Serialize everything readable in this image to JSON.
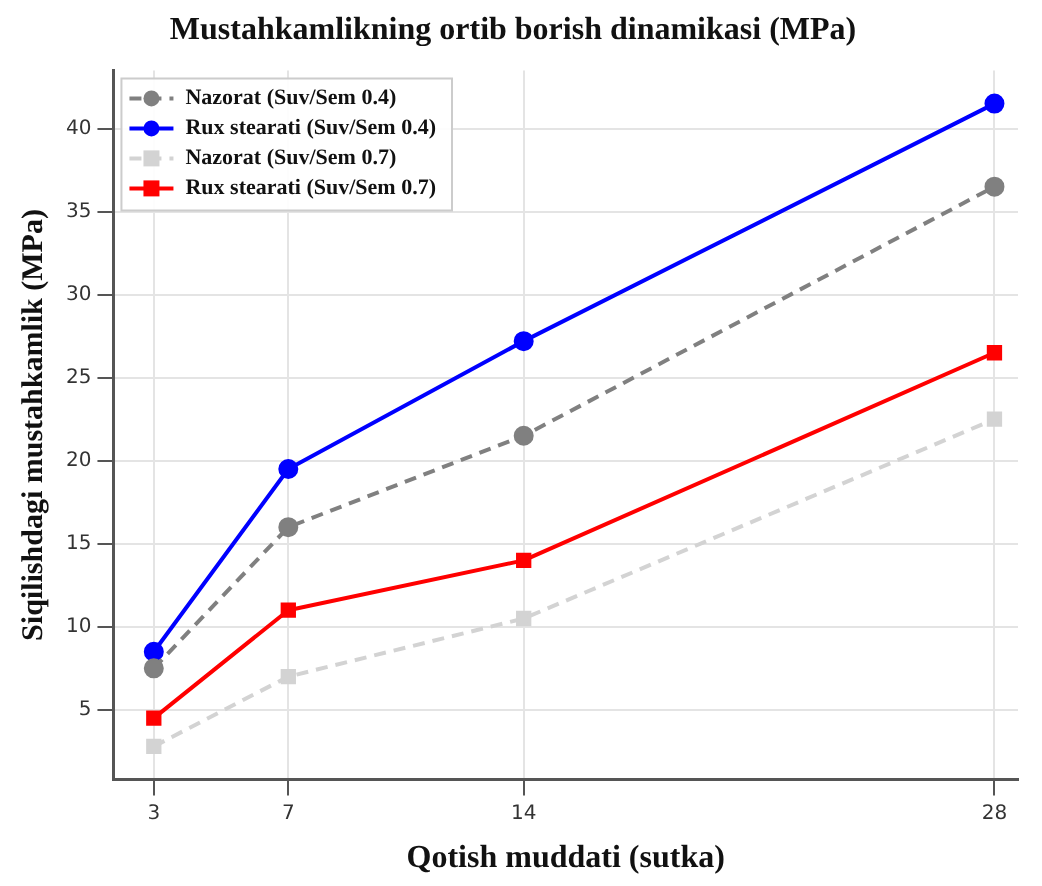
{
  "chart_data": {
    "type": "line",
    "title": "Mustahkamlikning ortib borish dinamikasi (MPa)",
    "xlabel": "Qotish muddati (sutka)",
    "ylabel": "Siqilishdagi mustahkamlik (MPa)",
    "x": [
      3,
      7,
      14,
      28
    ],
    "xlim": [
      1.8,
      28.7
    ],
    "xticks": [
      3,
      7,
      14,
      28
    ],
    "ylim": [
      0.8,
      43.5
    ],
    "yticks": [
      5,
      10,
      15,
      20,
      25,
      30,
      35,
      40
    ],
    "series": [
      {
        "name": "Nazorat (Suv/Sem 0.4)",
        "color": "#808080",
        "values": [
          7.5,
          16,
          21.5,
          36.5
        ],
        "marker": "circle",
        "line_style": "dashed"
      },
      {
        "name": "Rux stearati (Suv/Sem 0.4)",
        "color": "#0000ff",
        "values": [
          8.5,
          19.5,
          27.2,
          41.5
        ],
        "marker": "circle",
        "line_style": "solid"
      },
      {
        "name": "Nazorat (Suv/Sem 0.7)",
        "color": "#d3d3d3",
        "values": [
          2.8,
          7,
          10.5,
          22.5
        ],
        "marker": "square",
        "line_style": "dashed"
      },
      {
        "name": "Rux stearati (Suv/Sem 0.7)",
        "color": "#ff0000",
        "values": [
          4.5,
          11,
          14,
          26.5
        ],
        "marker": "square",
        "line_style": "solid"
      }
    ],
    "grid": true,
    "legend": "top left"
  }
}
